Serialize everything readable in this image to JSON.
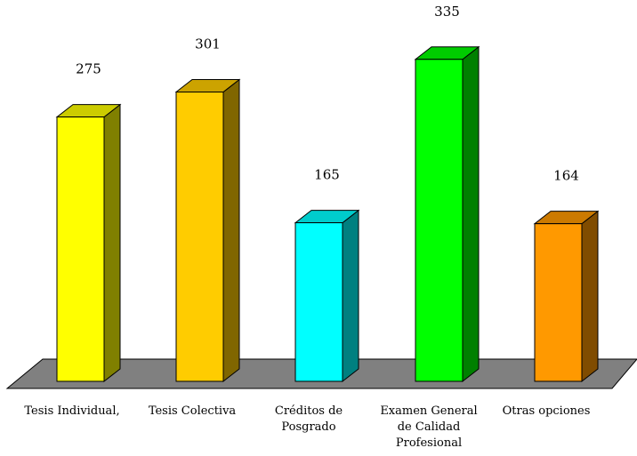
{
  "chart_data": {
    "type": "bar",
    "style": "3d",
    "title": "",
    "xlabel": "",
    "ylabel": "",
    "ylim": [
      0,
      335
    ],
    "grid": false,
    "legend": "none",
    "categories": [
      [
        "Tesis Individual,"
      ],
      [
        "Tesis Colectiva"
      ],
      [
        "Créditos de",
        "Posgrado"
      ],
      [
        "Examen General",
        "de Calidad",
        "Profesional"
      ],
      [
        "Otras opciones"
      ]
    ],
    "values": [
      275,
      301,
      165,
      335,
      164
    ],
    "value_labels": [
      "275",
      "301",
      "165",
      "335",
      "164"
    ],
    "colors": [
      {
        "front": "#ffff00",
        "side": "#808000",
        "top": "#cccc00"
      },
      {
        "front": "#ffcc00",
        "side": "#806600",
        "top": "#cca300"
      },
      {
        "front": "#00ffff",
        "side": "#008080",
        "top": "#00cccc"
      },
      {
        "front": "#00ff00",
        "side": "#008000",
        "top": "#00cc00"
      },
      {
        "front": "#ff9900",
        "side": "#804c00",
        "top": "#cc7a00"
      }
    ],
    "floor_color": "#808080"
  }
}
